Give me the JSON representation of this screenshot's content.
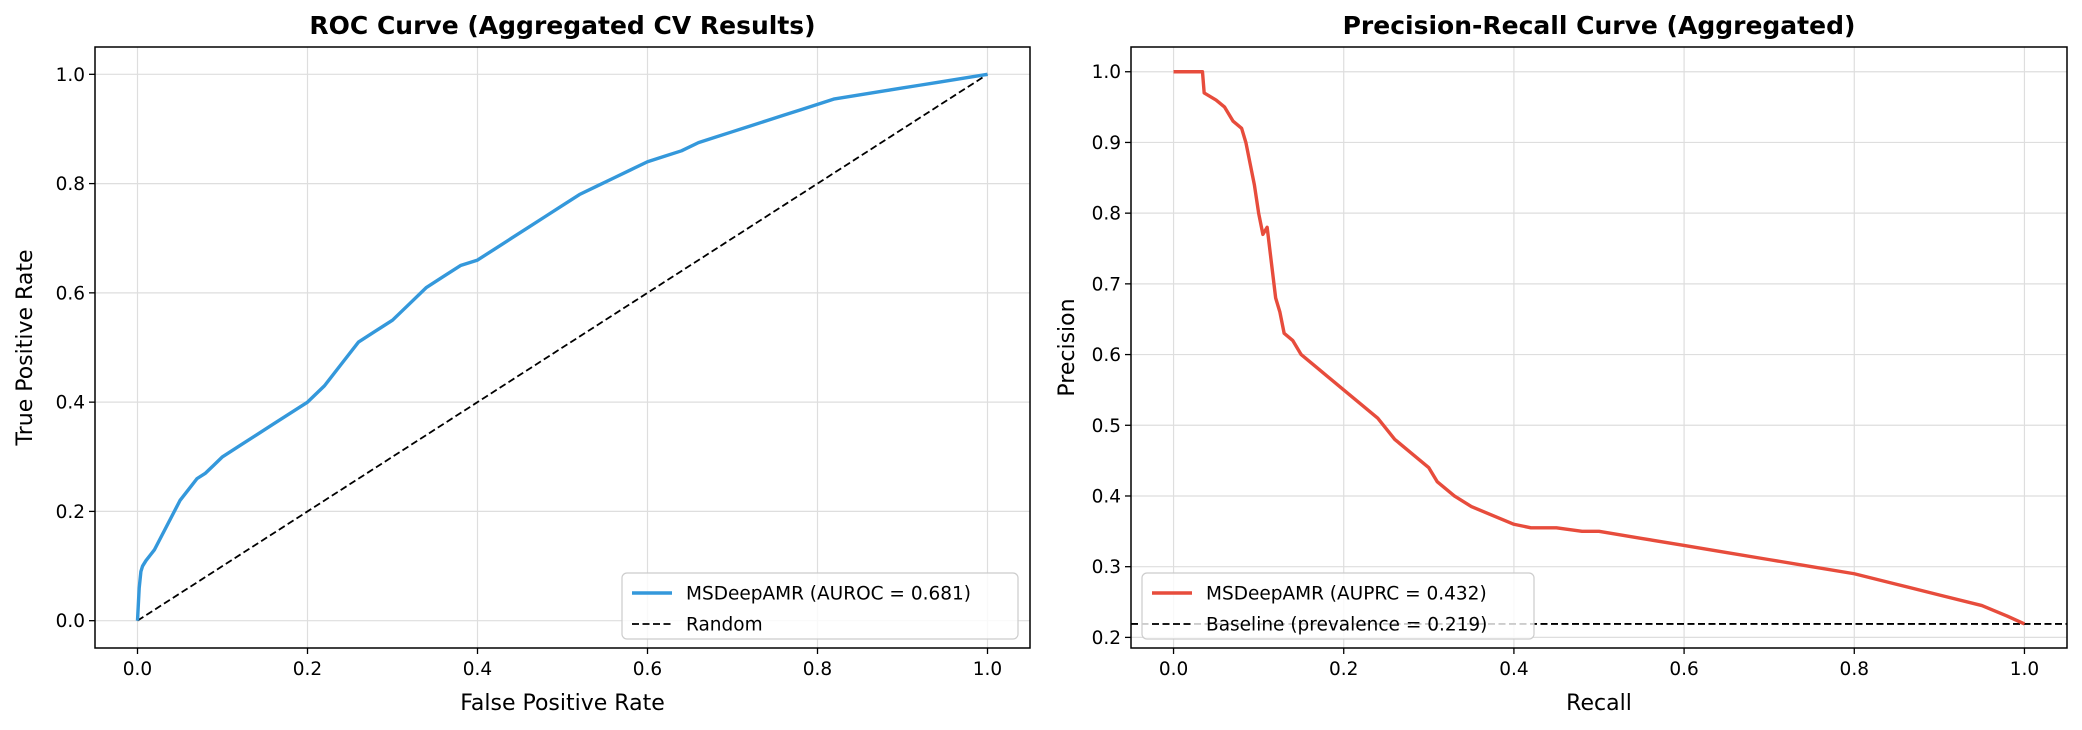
{
  "chart_data": [
    {
      "type": "line",
      "title": "ROC Curve (Aggregated CV Results)",
      "xlabel": "False Positive Rate",
      "ylabel": "True Positive Rate",
      "xlim": [
        -0.05,
        1.05
      ],
      "ylim": [
        -0.05,
        1.05
      ],
      "xticks": [
        0.0,
        0.2,
        0.4,
        0.6,
        0.8,
        1.0
      ],
      "yticks": [
        0.0,
        0.2,
        0.4,
        0.6,
        0.8,
        1.0
      ],
      "xtick_labels": [
        "0.0",
        "0.2",
        "0.4",
        "0.6",
        "0.8",
        "1.0"
      ],
      "ytick_labels": [
        "0.0",
        "0.2",
        "0.4",
        "0.6",
        "0.8",
        "1.0"
      ],
      "grid": true,
      "legend_position": "lower right",
      "series": [
        {
          "name": "MSDeepAMR (AUROC = 0.681)",
          "color": "#3498db",
          "style": "solid",
          "x": [
            0.0,
            0.002,
            0.004,
            0.006,
            0.01,
            0.015,
            0.02,
            0.03,
            0.04,
            0.05,
            0.06,
            0.07,
            0.08,
            0.09,
            0.1,
            0.12,
            0.14,
            0.16,
            0.18,
            0.2,
            0.22,
            0.24,
            0.26,
            0.28,
            0.3,
            0.32,
            0.34,
            0.36,
            0.38,
            0.4,
            0.42,
            0.44,
            0.46,
            0.48,
            0.5,
            0.52,
            0.54,
            0.56,
            0.58,
            0.6,
            0.62,
            0.64,
            0.66,
            0.68,
            0.7,
            0.72,
            0.74,
            0.76,
            0.78,
            0.8,
            0.82,
            0.84,
            0.86,
            0.88,
            0.9,
            0.92,
            0.94,
            0.96,
            0.98,
            1.0
          ],
          "y": [
            0.0,
            0.06,
            0.09,
            0.1,
            0.11,
            0.12,
            0.13,
            0.16,
            0.19,
            0.22,
            0.24,
            0.26,
            0.27,
            0.285,
            0.3,
            0.32,
            0.34,
            0.36,
            0.38,
            0.4,
            0.43,
            0.47,
            0.51,
            0.53,
            0.55,
            0.58,
            0.61,
            0.63,
            0.65,
            0.66,
            0.68,
            0.7,
            0.72,
            0.74,
            0.76,
            0.78,
            0.795,
            0.81,
            0.825,
            0.84,
            0.85,
            0.86,
            0.875,
            0.885,
            0.895,
            0.905,
            0.915,
            0.925,
            0.935,
            0.945,
            0.955,
            0.96,
            0.965,
            0.97,
            0.975,
            0.98,
            0.985,
            0.99,
            0.995,
            1.0
          ]
        },
        {
          "name": "Random",
          "color": "#000000",
          "style": "dashed",
          "x": [
            0.0,
            1.0
          ],
          "y": [
            0.0,
            1.0
          ]
        }
      ]
    },
    {
      "type": "line",
      "title": "Precision-Recall Curve (Aggregated)",
      "xlabel": "Recall",
      "ylabel": "Precision",
      "xlim": [
        -0.05,
        1.05
      ],
      "ylim": [
        0.185,
        1.035
      ],
      "xticks": [
        0.0,
        0.2,
        0.4,
        0.6,
        0.8,
        1.0
      ],
      "yticks": [
        0.2,
        0.3,
        0.4,
        0.5,
        0.6,
        0.7,
        0.8,
        0.9,
        1.0
      ],
      "xtick_labels": [
        "0.0",
        "0.2",
        "0.4",
        "0.6",
        "0.8",
        "1.0"
      ],
      "ytick_labels": [
        "0.2",
        "0.3",
        "0.4",
        "0.5",
        "0.6",
        "0.7",
        "0.8",
        "0.9",
        "1.0"
      ],
      "grid": true,
      "legend_position": "lower left",
      "series": [
        {
          "name": "MSDeepAMR (AUPRC = 0.432)",
          "color": "#e74c3c",
          "style": "solid",
          "x": [
            0.0,
            0.01,
            0.02,
            0.034,
            0.036,
            0.05,
            0.06,
            0.07,
            0.08,
            0.085,
            0.09,
            0.095,
            0.1,
            0.105,
            0.11,
            0.115,
            0.12,
            0.125,
            0.13,
            0.14,
            0.15,
            0.17,
            0.18,
            0.2,
            0.22,
            0.24,
            0.26,
            0.28,
            0.3,
            0.31,
            0.33,
            0.35,
            0.37,
            0.4,
            0.42,
            0.45,
            0.48,
            0.5,
            0.55,
            0.6,
            0.65,
            0.7,
            0.75,
            0.8,
            0.85,
            0.9,
            0.95,
            0.98,
            1.0
          ],
          "y": [
            1.0,
            1.0,
            1.0,
            1.0,
            0.97,
            0.96,
            0.95,
            0.93,
            0.92,
            0.9,
            0.87,
            0.84,
            0.8,
            0.77,
            0.78,
            0.73,
            0.68,
            0.66,
            0.63,
            0.62,
            0.6,
            0.58,
            0.57,
            0.55,
            0.53,
            0.51,
            0.48,
            0.46,
            0.44,
            0.42,
            0.4,
            0.385,
            0.375,
            0.36,
            0.355,
            0.355,
            0.35,
            0.35,
            0.34,
            0.33,
            0.32,
            0.31,
            0.3,
            0.29,
            0.275,
            0.26,
            0.245,
            0.23,
            0.219
          ]
        },
        {
          "name": "Baseline (prevalence = 0.219)",
          "color": "#000000",
          "style": "dashed",
          "x": [
            -0.05,
            1.05
          ],
          "y": [
            0.219,
            0.219
          ]
        }
      ]
    }
  ]
}
